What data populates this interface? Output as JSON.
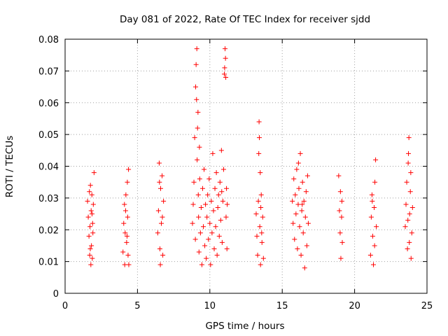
{
  "chart_data": {
    "type": "scatter",
    "title": "Day 081 of 2022, Rate Of TEC Index for receiver sjdd",
    "xlabel": "GPS time / hours",
    "ylabel": "ROTI / TECUs",
    "xlim": [
      0,
      25
    ],
    "ylim": [
      0,
      0.08
    ],
    "x_ticks": [
      0,
      5,
      10,
      15,
      20,
      25
    ],
    "x_tick_labels": [
      "0",
      "5",
      "10",
      "15",
      "20",
      "25"
    ],
    "y_ticks": [
      0,
      0.01,
      0.02,
      0.03,
      0.04,
      0.05,
      0.06,
      0.07,
      0.08
    ],
    "y_tick_labels": [
      "0",
      "0.01",
      "0.02",
      "0.03",
      "0.04",
      "0.05",
      "0.06",
      "0.07",
      "0.08"
    ],
    "grid": true,
    "marker": "+",
    "color": "#ff0000",
    "series": [
      {
        "points": [
          [
            1.55,
            0.029
          ],
          [
            1.6,
            0.024
          ],
          [
            1.65,
            0.018
          ],
          [
            1.7,
            0.012
          ],
          [
            1.72,
            0.021
          ],
          [
            1.75,
            0.034
          ],
          [
            1.78,
            0.009
          ],
          [
            1.8,
            0.026
          ],
          [
            1.82,
            0.015
          ],
          [
            1.85,
            0.031
          ],
          [
            1.88,
            0.011
          ],
          [
            1.9,
            0.022
          ],
          [
            1.92,
            0.019
          ],
          [
            1.95,
            0.028
          ],
          [
            2.0,
            0.038
          ],
          [
            1.68,
            0.032
          ],
          [
            1.74,
            0.014
          ],
          [
            1.86,
            0.025
          ],
          [
            4.0,
            0.013
          ],
          [
            4.05,
            0.022
          ],
          [
            4.1,
            0.028
          ],
          [
            4.12,
            0.009
          ],
          [
            4.15,
            0.019
          ],
          [
            4.2,
            0.031
          ],
          [
            4.25,
            0.016
          ],
          [
            4.3,
            0.035
          ],
          [
            4.32,
            0.024
          ],
          [
            4.35,
            0.012
          ],
          [
            4.38,
            0.039
          ],
          [
            4.4,
            0.009
          ],
          [
            4.18,
            0.026
          ],
          [
            4.28,
            0.018
          ],
          [
            6.4,
            0.019
          ],
          [
            6.45,
            0.026
          ],
          [
            6.5,
            0.041
          ],
          [
            6.55,
            0.014
          ],
          [
            6.6,
            0.033
          ],
          [
            6.65,
            0.022
          ],
          [
            6.7,
            0.037
          ],
          [
            6.75,
            0.012
          ],
          [
            6.8,
            0.029
          ],
          [
            6.58,
            0.009
          ],
          [
            6.52,
            0.035
          ],
          [
            6.72,
            0.024
          ],
          [
            8.8,
            0.022
          ],
          [
            8.85,
            0.028
          ],
          [
            8.9,
            0.035
          ],
          [
            8.95,
            0.049
          ],
          [
            9.0,
            0.017
          ],
          [
            9.05,
            0.072
          ],
          [
            9.08,
            0.061
          ],
          [
            9.1,
            0.077
          ],
          [
            9.12,
            0.042
          ],
          [
            9.15,
            0.052
          ],
          [
            9.18,
            0.057
          ],
          [
            9.2,
            0.031
          ],
          [
            9.22,
            0.024
          ],
          [
            9.25,
            0.013
          ],
          [
            9.3,
            0.036
          ],
          [
            9.35,
            0.019
          ],
          [
            9.4,
            0.027
          ],
          [
            9.45,
            0.009
          ],
          [
            9.5,
            0.033
          ],
          [
            9.55,
            0.021
          ],
          [
            9.6,
            0.039
          ],
          [
            9.65,
            0.015
          ],
          [
            9.7,
            0.028
          ],
          [
            9.75,
            0.011
          ],
          [
            9.8,
            0.024
          ],
          [
            9.85,
            0.031
          ],
          [
            9.9,
            0.017
          ],
          [
            9.95,
            0.036
          ],
          [
            10.0,
            0.022
          ],
          [
            10.05,
            0.009
          ],
          [
            10.1,
            0.029
          ],
          [
            10.15,
            0.019
          ],
          [
            10.2,
            0.044
          ],
          [
            10.25,
            0.026
          ],
          [
            10.3,
            0.014
          ],
          [
            10.35,
            0.033
          ],
          [
            10.4,
            0.021
          ],
          [
            10.45,
            0.038
          ],
          [
            10.5,
            0.012
          ],
          [
            10.55,
            0.027
          ],
          [
            10.6,
            0.031
          ],
          [
            10.65,
            0.018
          ],
          [
            10.7,
            0.035
          ],
          [
            10.75,
            0.023
          ],
          [
            10.8,
            0.045
          ],
          [
            10.85,
            0.016
          ],
          [
            10.9,
            0.029
          ],
          [
            10.95,
            0.039
          ],
          [
            11.0,
            0.069
          ],
          [
            11.02,
            0.071
          ],
          [
            11.05,
            0.077
          ],
          [
            11.08,
            0.074
          ],
          [
            11.1,
            0.068
          ],
          [
            11.12,
            0.024
          ],
          [
            11.15,
            0.033
          ],
          [
            11.18,
            0.014
          ],
          [
            11.2,
            0.028
          ],
          [
            9.02,
            0.065
          ],
          [
            9.28,
            0.046
          ],
          [
            10.82,
            0.032
          ],
          [
            13.2,
            0.025
          ],
          [
            13.25,
            0.018
          ],
          [
            13.3,
            0.012
          ],
          [
            13.35,
            0.029
          ],
          [
            13.38,
            0.044
          ],
          [
            13.4,
            0.054
          ],
          [
            13.42,
            0.049
          ],
          [
            13.45,
            0.021
          ],
          [
            13.5,
            0.009
          ],
          [
            13.55,
            0.031
          ],
          [
            13.6,
            0.016
          ],
          [
            13.65,
            0.024
          ],
          [
            13.7,
            0.011
          ],
          [
            13.48,
            0.038
          ],
          [
            13.52,
            0.027
          ],
          [
            13.58,
            0.019
          ],
          [
            15.7,
            0.029
          ],
          [
            15.75,
            0.022
          ],
          [
            15.8,
            0.036
          ],
          [
            15.85,
            0.017
          ],
          [
            15.9,
            0.031
          ],
          [
            15.95,
            0.025
          ],
          [
            16.0,
            0.039
          ],
          [
            16.05,
            0.014
          ],
          [
            16.1,
            0.028
          ],
          [
            16.15,
            0.033
          ],
          [
            16.2,
            0.021
          ],
          [
            16.25,
            0.044
          ],
          [
            16.3,
            0.012
          ],
          [
            16.35,
            0.026
          ],
          [
            16.4,
            0.035
          ],
          [
            16.45,
            0.019
          ],
          [
            16.5,
            0.029
          ],
          [
            16.55,
            0.008
          ],
          [
            16.6,
            0.024
          ],
          [
            16.65,
            0.032
          ],
          [
            16.7,
            0.015
          ],
          [
            16.75,
            0.037
          ],
          [
            16.8,
            0.022
          ],
          [
            16.12,
            0.041
          ],
          [
            16.38,
            0.028
          ],
          [
            18.9,
            0.037
          ],
          [
            18.95,
            0.026
          ],
          [
            19.0,
            0.019
          ],
          [
            19.05,
            0.011
          ],
          [
            19.1,
            0.024
          ],
          [
            19.12,
            0.029
          ],
          [
            19.15,
            0.016
          ],
          [
            19.02,
            0.032
          ],
          [
            21.1,
            0.012
          ],
          [
            21.15,
            0.024
          ],
          [
            21.2,
            0.031
          ],
          [
            21.25,
            0.018
          ],
          [
            21.3,
            0.009
          ],
          [
            21.35,
            0.027
          ],
          [
            21.4,
            0.035
          ],
          [
            21.45,
            0.042
          ],
          [
            21.5,
            0.021
          ],
          [
            21.38,
            0.015
          ],
          [
            21.22,
            0.029
          ],
          [
            23.5,
            0.021
          ],
          [
            23.55,
            0.028
          ],
          [
            23.6,
            0.035
          ],
          [
            23.65,
            0.014
          ],
          [
            23.7,
            0.041
          ],
          [
            23.75,
            0.049
          ],
          [
            23.8,
            0.025
          ],
          [
            23.85,
            0.032
          ],
          [
            23.9,
            0.011
          ],
          [
            23.95,
            0.019
          ],
          [
            24.0,
            0.027
          ],
          [
            23.72,
            0.044
          ],
          [
            23.68,
            0.023
          ],
          [
            23.88,
            0.038
          ],
          [
            23.78,
            0.016
          ]
        ]
      }
    ]
  }
}
